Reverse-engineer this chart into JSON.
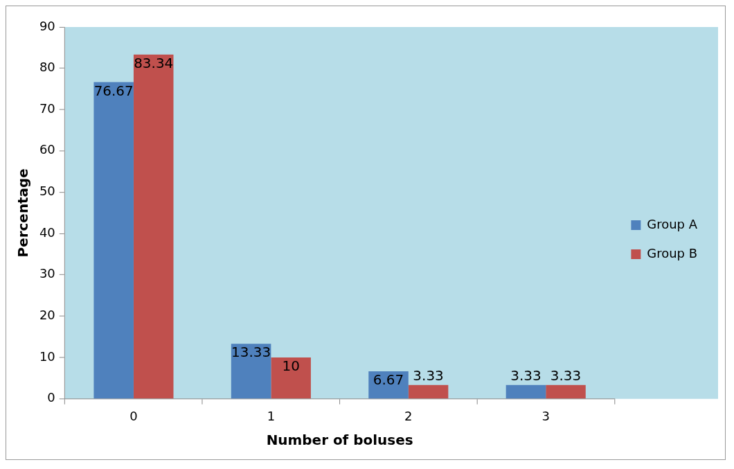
{
  "chart_data": {
    "type": "bar",
    "xlabel": "Number of boluses",
    "ylabel": "Percentage",
    "categories": [
      "0",
      "1",
      "2",
      "3"
    ],
    "series": [
      {
        "name": "Group A",
        "color": "#4f81bd",
        "values": [
          76.67,
          13.33,
          6.67,
          3.33
        ]
      },
      {
        "name": "Group B",
        "color": "#c0504d",
        "values": [
          83.34,
          10,
          3.33,
          3.33
        ]
      }
    ],
    "ylim": [
      0,
      90
    ],
    "yticks": [
      0,
      10,
      20,
      30,
      40,
      50,
      60,
      70,
      80,
      90
    ],
    "grid": false,
    "legend": "right",
    "data_labels": true
  }
}
